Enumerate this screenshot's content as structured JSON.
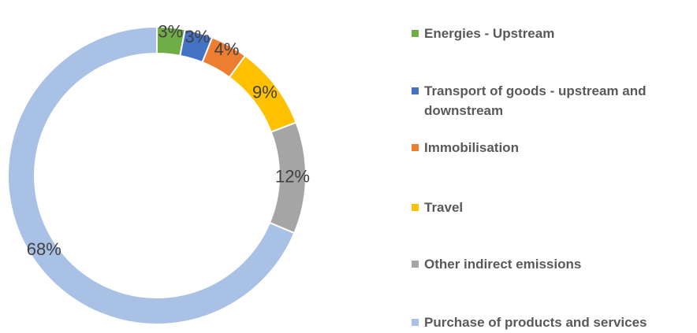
{
  "chart_data": {
    "type": "donut",
    "categories": [
      "Energies - Upstream",
      "Transport of goods - upstream and downstream",
      "Immobilisation",
      "Travel",
      "Other indirect emissions",
      "Purchase of products and services"
    ],
    "values": [
      3,
      3,
      4,
      9,
      12,
      68
    ],
    "value_labels": [
      "3%",
      "3%",
      "4%",
      "9%",
      "12%",
      "68%"
    ],
    "colors": [
      "#70ad47",
      "#4472c4",
      "#ed7d31",
      "#ffc000",
      "#a5a5a5",
      "#a9c1e4"
    ],
    "legend": "right"
  }
}
